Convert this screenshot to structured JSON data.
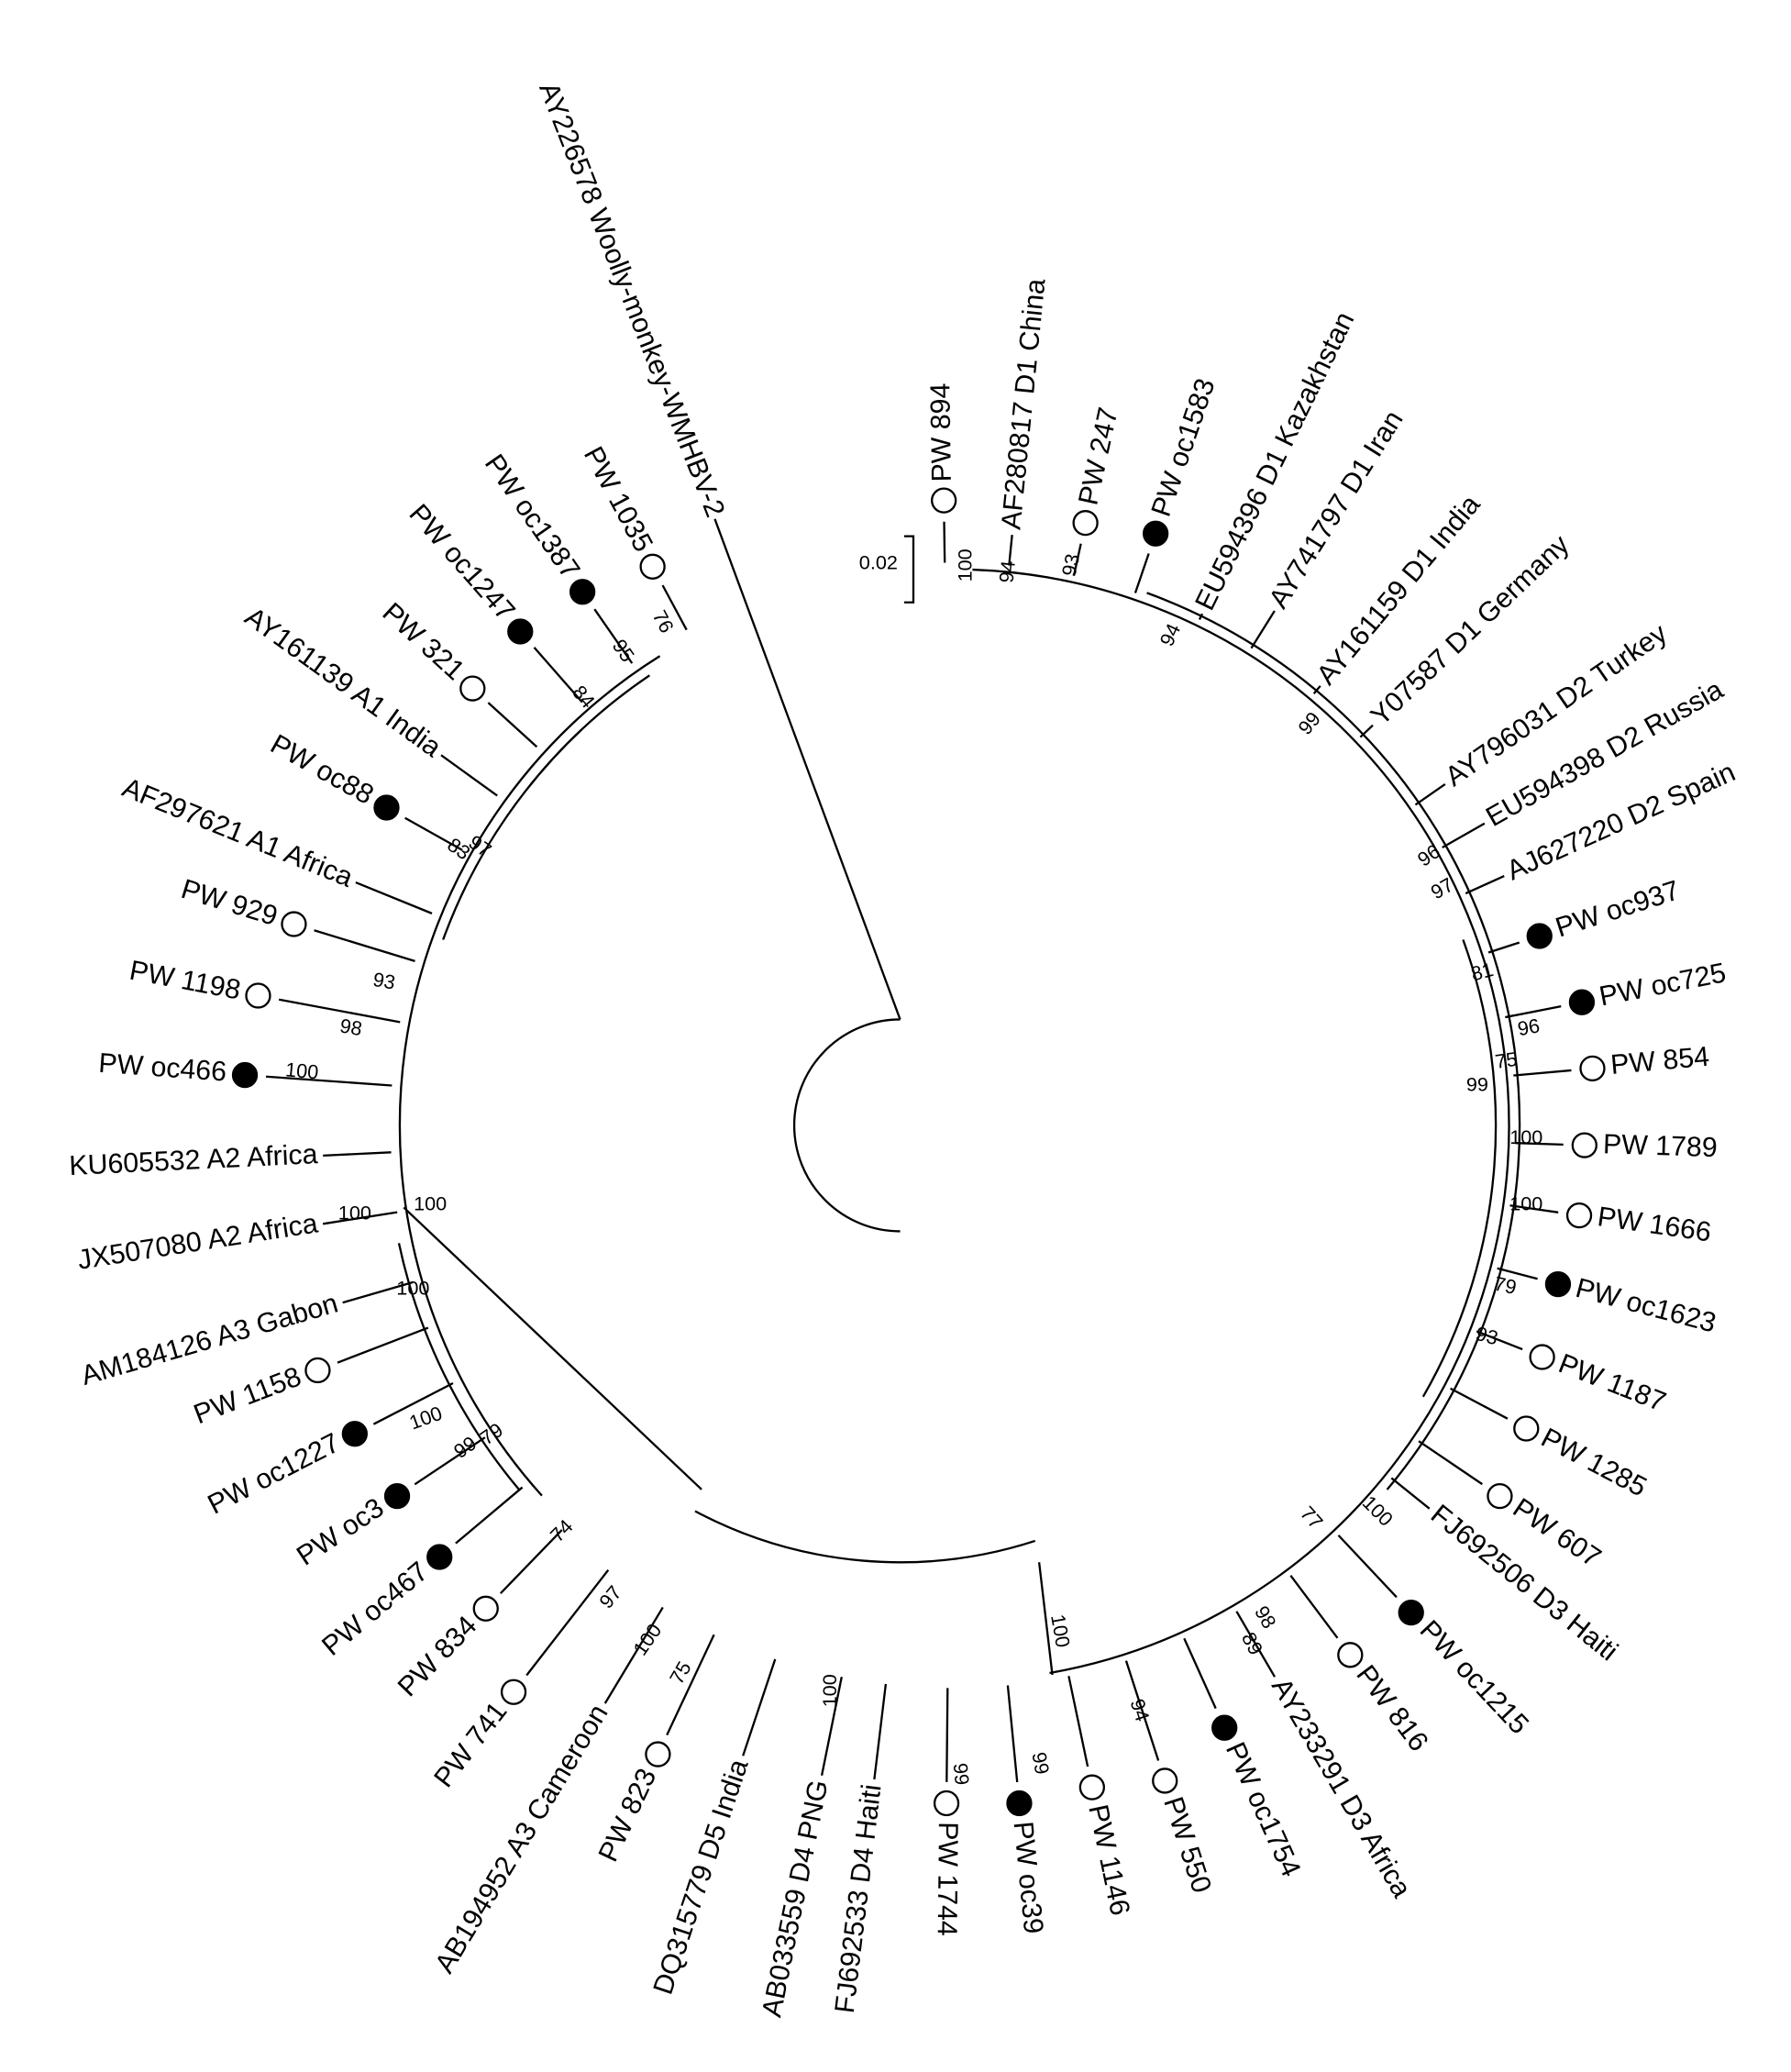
{
  "scale_bar": {
    "label": "0.02"
  },
  "marker_colors": {
    "filled": "#000000",
    "open": "#ffffff"
  },
  "leaves": [
    {
      "name": "AY226578 Woolly-monkey-WMHBV-2",
      "marker": "none"
    },
    {
      "name": "PW 894",
      "marker": "open"
    },
    {
      "name": "AF280817 D1 China",
      "marker": "none"
    },
    {
      "name": "PW 247",
      "marker": "open"
    },
    {
      "name": "PW oc1583",
      "marker": "filled"
    },
    {
      "name": "EU594396 D1 Kazakhstan",
      "marker": "none"
    },
    {
      "name": "AY741797 D1 Iran",
      "marker": "none"
    },
    {
      "name": "AY161159 D1 India",
      "marker": "none"
    },
    {
      "name": "Y07587 D1 Germany",
      "marker": "none"
    },
    {
      "name": "AY796031 D2 Turkey",
      "marker": "none"
    },
    {
      "name": "EU594398 D2 Russia",
      "marker": "none"
    },
    {
      "name": "AJ627220 D2 Spain",
      "marker": "none"
    },
    {
      "name": "PW oc937",
      "marker": "filled"
    },
    {
      "name": "PW oc725",
      "marker": "filled"
    },
    {
      "name": "PW 854",
      "marker": "open"
    },
    {
      "name": "PW 1789",
      "marker": "open"
    },
    {
      "name": "PW 1666",
      "marker": "open"
    },
    {
      "name": "PW oc1623",
      "marker": "filled"
    },
    {
      "name": "PW 1187",
      "marker": "open"
    },
    {
      "name": "PW 1285",
      "marker": "open"
    },
    {
      "name": "PW 607",
      "marker": "open"
    },
    {
      "name": "FJ692506 D3 Haiti",
      "marker": "none"
    },
    {
      "name": "PW oc1215",
      "marker": "filled"
    },
    {
      "name": "PW 816",
      "marker": "open"
    },
    {
      "name": "AY233291 D3 Africa",
      "marker": "none"
    },
    {
      "name": "PW oc1754",
      "marker": "filled"
    },
    {
      "name": "PW 550",
      "marker": "open"
    },
    {
      "name": "PW 1146",
      "marker": "open"
    },
    {
      "name": "PW oc39",
      "marker": "filled"
    },
    {
      "name": "PW 1744",
      "marker": "open"
    },
    {
      "name": "FJ692533 D4 Haiti",
      "marker": "none"
    },
    {
      "name": "AB033559 D4 PNG",
      "marker": "none"
    },
    {
      "name": "DQ315779 D5 India",
      "marker": "none"
    },
    {
      "name": "PW 823",
      "marker": "open"
    },
    {
      "name": "AB194952 A3 Cameroon",
      "marker": "none"
    },
    {
      "name": "PW 741",
      "marker": "open"
    },
    {
      "name": "PW 834",
      "marker": "open"
    },
    {
      "name": "PW oc467",
      "marker": "filled"
    },
    {
      "name": "PW oc3",
      "marker": "filled"
    },
    {
      "name": "PW oc1227",
      "marker": "filled"
    },
    {
      "name": "PW 1158",
      "marker": "open"
    },
    {
      "name": "AM184126 A3 Gabon",
      "marker": "none"
    },
    {
      "name": "JX507080 A2 Africa",
      "marker": "none"
    },
    {
      "name": "KU605532 A2 Africa",
      "marker": "none"
    },
    {
      "name": "PW oc466",
      "marker": "filled"
    },
    {
      "name": "PW 1198",
      "marker": "open"
    },
    {
      "name": "PW 929",
      "marker": "open"
    },
    {
      "name": "AF297621 A1 Africa",
      "marker": "none"
    },
    {
      "name": "PW oc88",
      "marker": "filled"
    },
    {
      "name": "AY161139 A1 India",
      "marker": "none"
    },
    {
      "name": "PW 321",
      "marker": "open"
    },
    {
      "name": "PW oc1247",
      "marker": "filled"
    },
    {
      "name": "PW oc1387",
      "marker": "filled"
    },
    {
      "name": "PW 1035",
      "marker": "open"
    }
  ],
  "bootstrap": [
    "76",
    "95",
    "84",
    "83",
    "97",
    "93",
    "98",
    "100",
    "100",
    "100",
    "100",
    "100",
    "99",
    "79",
    "74",
    "97",
    "100",
    "75",
    "100",
    "94",
    "93",
    "94",
    "99",
    "96",
    "97",
    "81",
    "96",
    "75",
    "99",
    "100",
    "100",
    "79",
    "93",
    "77",
    "100",
    "98",
    "89",
    "94",
    "99",
    "99",
    "100",
    "100"
  ]
}
